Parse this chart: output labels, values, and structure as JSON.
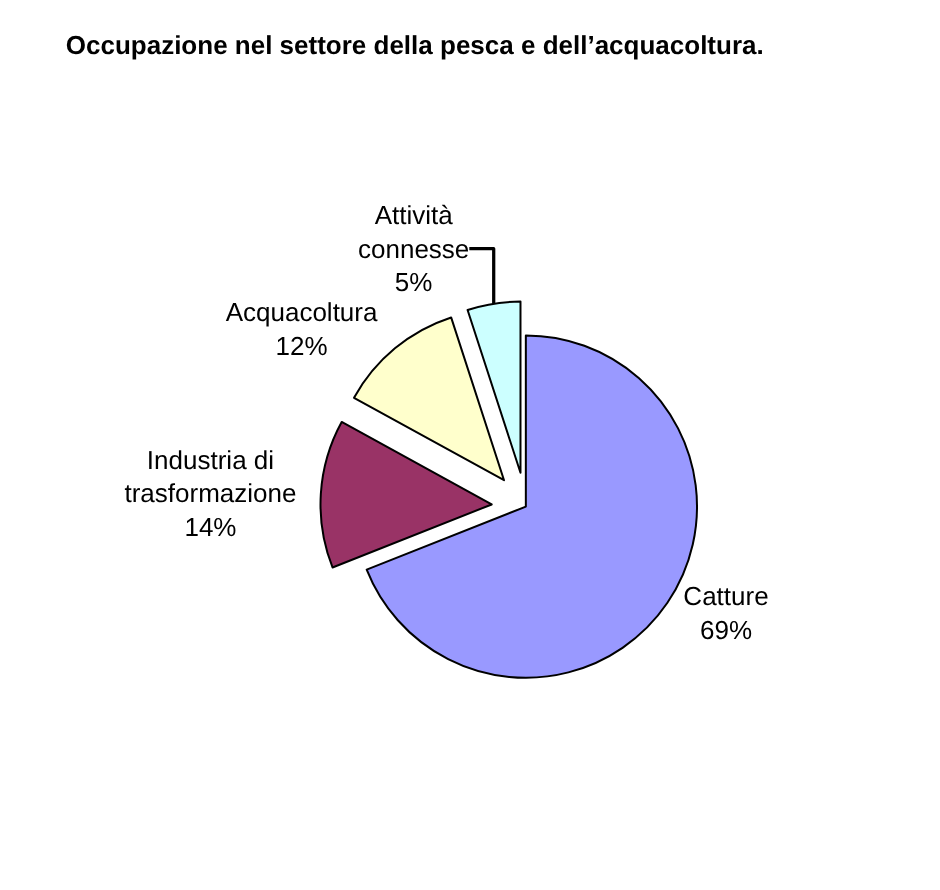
{
  "chart_data": {
    "type": "pie",
    "title": "Occupazione nel settore della pesca e dell’acquacoltura.",
    "categories": [
      "Catture",
      "Industria di trasformazione",
      "Acquacoltura",
      "Attività connesse"
    ],
    "values": [
      69,
      14,
      12,
      5
    ],
    "value_labels": [
      "69%",
      "14%",
      "12%",
      "5%"
    ],
    "colors": [
      "#9999ff",
      "#993366",
      "#ffffcc",
      "#ccffff"
    ],
    "legend": false
  }
}
